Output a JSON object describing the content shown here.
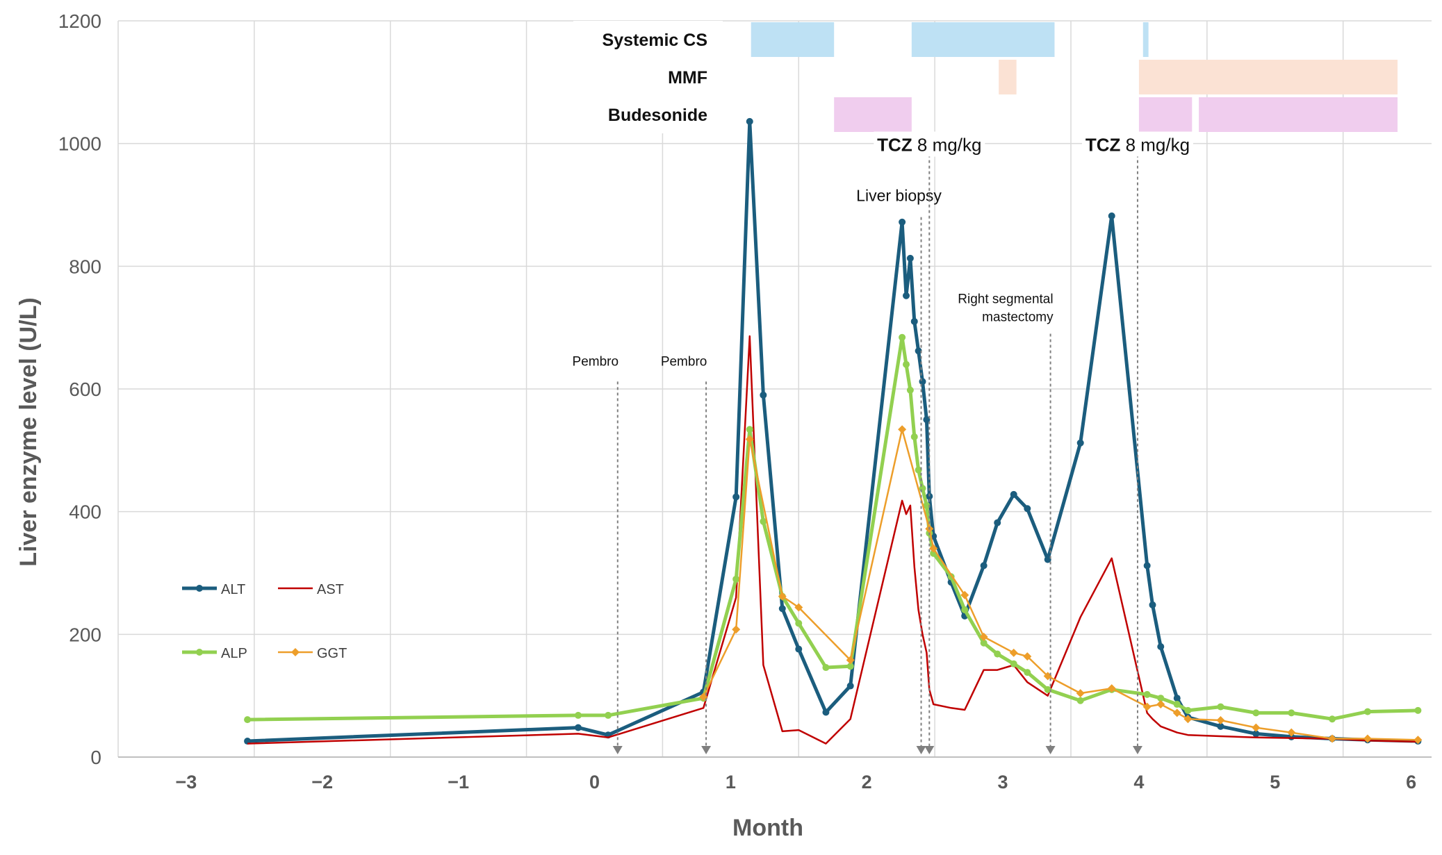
{
  "chart_data": {
    "type": "line",
    "title": "",
    "xlabel": "Month",
    "ylabel": "Liver enzyme level (U/L)",
    "ylim": [
      0,
      1200
    ],
    "xlim": [
      -3.5,
      6.15
    ],
    "yticks": [
      0,
      200,
      400,
      600,
      800,
      1000,
      1200
    ],
    "xtick_labels": [
      {
        "v": -3,
        "label": "−3"
      },
      {
        "v": -2,
        "label": "−2"
      },
      {
        "v": -1,
        "label": "−1"
      },
      {
        "v": 0,
        "label": "0"
      },
      {
        "v": 1,
        "label": "1"
      },
      {
        "v": 2,
        "label": "2"
      },
      {
        "v": 3,
        "label": "3"
      },
      {
        "v": 4,
        "label": "4"
      },
      {
        "v": 5,
        "label": "5"
      },
      {
        "v": 6,
        "label": "6"
      }
    ],
    "grid": true,
    "series": [
      {
        "name": "ALT",
        "color": "#1b5d7e",
        "width": 5,
        "marker": "circle",
        "points": [
          [
            -2.55,
            26
          ],
          [
            -0.12,
            48
          ],
          [
            0.1,
            36
          ],
          [
            0.8,
            106
          ],
          [
            1.04,
            424
          ],
          [
            1.14,
            1036
          ],
          [
            1.24,
            590
          ],
          [
            1.38,
            242
          ],
          [
            1.5,
            176
          ],
          [
            1.7,
            73
          ],
          [
            1.88,
            116
          ],
          [
            2.26,
            872
          ],
          [
            2.29,
            752
          ],
          [
            2.32,
            813
          ],
          [
            2.35,
            710
          ],
          [
            2.38,
            662
          ],
          [
            2.41,
            612
          ],
          [
            2.44,
            550
          ],
          [
            2.46,
            425
          ],
          [
            2.49,
            360
          ],
          [
            2.62,
            285
          ],
          [
            2.72,
            230
          ],
          [
            2.86,
            312
          ],
          [
            2.96,
            382
          ],
          [
            3.08,
            428
          ],
          [
            3.18,
            405
          ],
          [
            3.33,
            322
          ],
          [
            3.57,
            512
          ],
          [
            3.8,
            882
          ],
          [
            4.06,
            312
          ],
          [
            4.1,
            248
          ],
          [
            4.16,
            180
          ],
          [
            4.28,
            96
          ],
          [
            4.36,
            65
          ],
          [
            4.6,
            50
          ],
          [
            4.86,
            38
          ],
          [
            5.12,
            33
          ],
          [
            5.42,
            30
          ],
          [
            5.68,
            28
          ],
          [
            6.05,
            26
          ]
        ]
      },
      {
        "name": "AST",
        "color": "#c00000",
        "width": 2.5,
        "marker": "none",
        "points": [
          [
            -2.55,
            22
          ],
          [
            -0.12,
            38
          ],
          [
            0.1,
            32
          ],
          [
            0.8,
            80
          ],
          [
            1.04,
            260
          ],
          [
            1.14,
            686
          ],
          [
            1.24,
            150
          ],
          [
            1.38,
            42
          ],
          [
            1.5,
            44
          ],
          [
            1.7,
            22
          ],
          [
            1.88,
            62
          ],
          [
            2.26,
            418
          ],
          [
            2.29,
            396
          ],
          [
            2.32,
            410
          ],
          [
            2.35,
            310
          ],
          [
            2.38,
            240
          ],
          [
            2.41,
            200
          ],
          [
            2.44,
            170
          ],
          [
            2.46,
            110
          ],
          [
            2.49,
            86
          ],
          [
            2.62,
            80
          ],
          [
            2.72,
            77
          ],
          [
            2.86,
            142
          ],
          [
            2.96,
            142
          ],
          [
            3.08,
            150
          ],
          [
            3.18,
            122
          ],
          [
            3.33,
            100
          ],
          [
            3.57,
            228
          ],
          [
            3.8,
            324
          ],
          [
            4.06,
            72
          ],
          [
            4.1,
            62
          ],
          [
            4.16,
            50
          ],
          [
            4.28,
            40
          ],
          [
            4.36,
            36
          ],
          [
            4.6,
            34
          ],
          [
            4.86,
            32
          ],
          [
            5.12,
            31
          ],
          [
            5.42,
            30
          ],
          [
            5.68,
            27
          ],
          [
            6.05,
            25
          ]
        ]
      },
      {
        "name": "ALP",
        "color": "#92d050",
        "width": 5,
        "marker": "circle",
        "points": [
          [
            -2.55,
            61
          ],
          [
            -0.12,
            68
          ],
          [
            0.1,
            68
          ],
          [
            0.8,
            96
          ],
          [
            1.04,
            290
          ],
          [
            1.14,
            534
          ],
          [
            1.24,
            384
          ],
          [
            1.38,
            262
          ],
          [
            1.5,
            218
          ],
          [
            1.7,
            146
          ],
          [
            1.88,
            148
          ],
          [
            2.26,
            684
          ],
          [
            2.29,
            640
          ],
          [
            2.32,
            598
          ],
          [
            2.35,
            522
          ],
          [
            2.38,
            468
          ],
          [
            2.41,
            438
          ],
          [
            2.44,
            410
          ],
          [
            2.46,
            365
          ],
          [
            2.49,
            332
          ],
          [
            2.62,
            294
          ],
          [
            2.72,
            240
          ],
          [
            2.86,
            186
          ],
          [
            2.96,
            168
          ],
          [
            3.08,
            152
          ],
          [
            3.18,
            138
          ],
          [
            3.33,
            110
          ],
          [
            3.57,
            92
          ],
          [
            3.8,
            110
          ],
          [
            4.06,
            102
          ],
          [
            4.16,
            96
          ],
          [
            4.28,
            86
          ],
          [
            4.36,
            76
          ],
          [
            4.6,
            82
          ],
          [
            4.86,
            72
          ],
          [
            5.12,
            72
          ],
          [
            5.42,
            62
          ],
          [
            5.68,
            74
          ],
          [
            6.05,
            76
          ]
        ]
      },
      {
        "name": "GGT",
        "color": "#ed9e2a",
        "width": 2.5,
        "marker": "diamond",
        "points": [
          [
            0.8,
            98
          ],
          [
            1.04,
            208
          ],
          [
            1.14,
            518
          ],
          [
            1.38,
            262
          ],
          [
            1.5,
            244
          ],
          [
            1.88,
            158
          ],
          [
            2.26,
            534
          ],
          [
            2.46,
            372
          ],
          [
            2.49,
            340
          ],
          [
            2.72,
            264
          ],
          [
            2.86,
            196
          ],
          [
            3.08,
            170
          ],
          [
            3.18,
            164
          ],
          [
            3.33,
            132
          ],
          [
            3.57,
            104
          ],
          [
            3.8,
            112
          ],
          [
            4.06,
            82
          ],
          [
            4.16,
            86
          ],
          [
            4.28,
            72
          ],
          [
            4.36,
            62
          ],
          [
            4.6,
            60
          ],
          [
            4.86,
            48
          ],
          [
            5.12,
            40
          ],
          [
            5.42,
            30
          ],
          [
            5.68,
            30
          ],
          [
            6.05,
            28
          ]
        ]
      }
    ],
    "legend": [
      {
        "name": "ALT",
        "color": "#1b5d7e",
        "style": "thick-circle"
      },
      {
        "name": "AST",
        "color": "#c00000",
        "style": "thin"
      },
      {
        "name": "ALP",
        "color": "#92d050",
        "style": "thick-circle"
      },
      {
        "name": "GGT",
        "color": "#ed9e2a",
        "style": "thin-diamond"
      }
    ],
    "treatment_bars": [
      {
        "label": "Systemic CS",
        "color": "#bee1f4",
        "spans": [
          [
            1.15,
            1.76
          ],
          [
            2.33,
            3.38
          ],
          [
            4.03,
            4.07
          ]
        ]
      },
      {
        "label": "MMF",
        "color": "#fbe2d4",
        "spans": [
          [
            2.97,
            3.1
          ],
          [
            4.0,
            5.9
          ]
        ]
      },
      {
        "label": "Budesonide",
        "color": "#f0cdee",
        "spans": [
          [
            1.76,
            2.33
          ],
          [
            4.0,
            4.39
          ],
          [
            4.44,
            5.9
          ]
        ]
      }
    ],
    "events": [
      {
        "label": "Pembro",
        "x": 0.17,
        "label_y": 638,
        "top": 612
      },
      {
        "label": "Pembro",
        "x": 0.82,
        "label_y": 638,
        "top": 612
      },
      {
        "label": "Liver biopsy",
        "x": 2.4,
        "label_y": 906,
        "top": 880
      },
      {
        "label_bold": "TCZ",
        "label_rest": "8 mg/kg",
        "x": 2.46,
        "label_y": 990,
        "top": 1000
      },
      {
        "label_lines": [
          "Right segmental",
          "mastectomy"
        ],
        "x": 3.35,
        "label_y": 740,
        "top": 690
      },
      {
        "label_bold": "TCZ",
        "label_rest": "8 mg/kg",
        "x": 3.99,
        "label_y": 990,
        "top": 1000
      }
    ]
  }
}
